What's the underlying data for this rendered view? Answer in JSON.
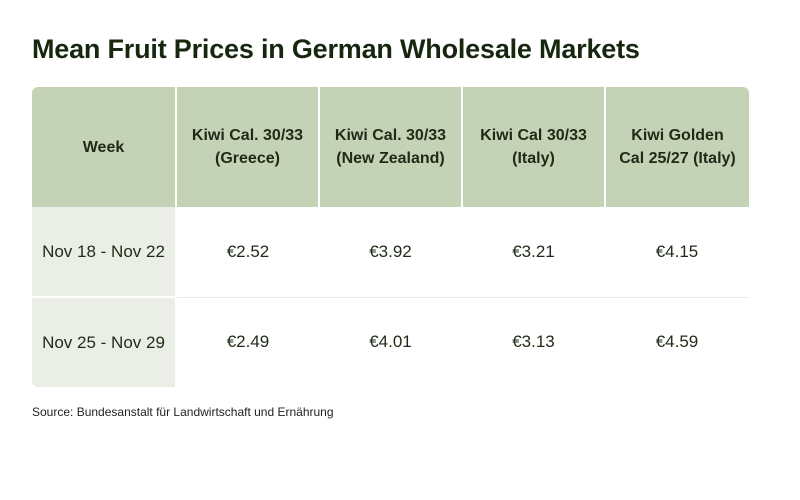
{
  "title": "Mean Fruit Prices in German Wholesale Markets",
  "source": "Source: Bundesanstalt für Landwirtschaft und Ernährung",
  "colors": {
    "header_bg": "#c4d3b6",
    "week_cell_bg": "#ebeee6",
    "title_text": "#17270f"
  },
  "chart_data": {
    "type": "table",
    "title": "Mean Fruit Prices in German Wholesale Markets",
    "columns": [
      "Week",
      "Kiwi Cal. 30/33 (Greece)",
      "Kiwi Cal. 30/33 (New Zealand)",
      "Kiwi Cal 30/33 (Italy)",
      "Kiwi Golden Cal 25/27 (Italy)"
    ],
    "rows": [
      {
        "week": "Nov 18 - Nov 22",
        "values": [
          "€2.52",
          "€3.92",
          "€3.21",
          "€4.15"
        ]
      },
      {
        "week": "Nov 25 - Nov 29",
        "values": [
          "€2.49",
          "€4.01",
          "€3.13",
          "€4.59"
        ]
      }
    ]
  }
}
